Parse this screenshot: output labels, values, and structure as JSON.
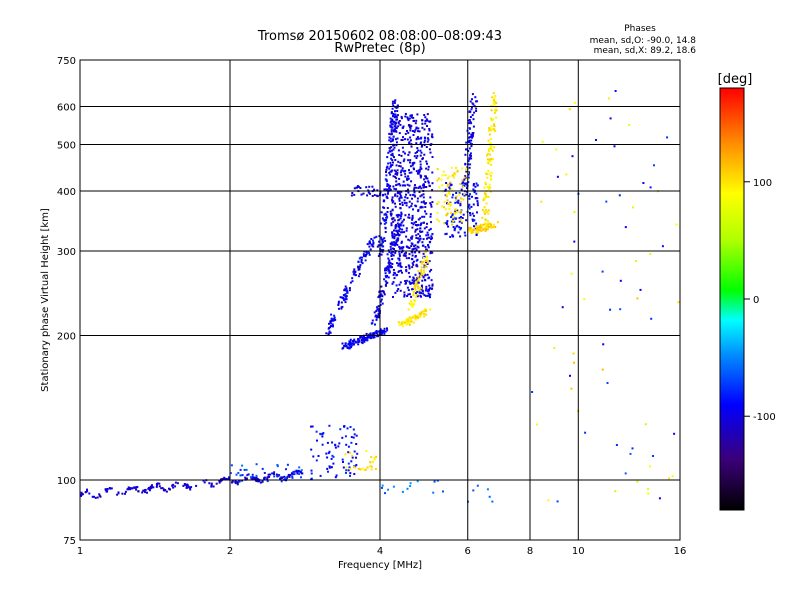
{
  "chart_data": {
    "type": "scatter",
    "title": "Tromsø 20150602 08:08:00–08:09:43",
    "subtitle": "RwPretec (8p)",
    "xlabel": "Frequency [MHz]",
    "ylabel": "Stationary phase Virtual Height [km]",
    "x_scale": "log2",
    "y_scale": "log",
    "xlim": [
      1,
      16
    ],
    "ylim": [
      75,
      750
    ],
    "x_ticks": [
      "1",
      "2",
      "4",
      "6",
      "8",
      "10",
      "16"
    ],
    "x_tick_values": [
      1,
      2,
      4,
      6,
      8,
      10,
      16
    ],
    "y_ticks": [
      "75",
      "100",
      "200",
      "300",
      "400",
      "500",
      "600",
      "750"
    ],
    "y_tick_values": [
      75,
      100,
      200,
      300,
      400,
      500,
      600,
      750
    ],
    "grid": true,
    "stats": {
      "header": "Phases",
      "line_o": "mean, sd,O: -90.0, 14.8",
      "line_x": "mean, sd,X:  89.2, 18.6"
    },
    "colorbar": {
      "label": "[deg]",
      "range": [
        -180,
        180
      ],
      "ticks": [
        "100",
        "0",
        "-100"
      ],
      "tick_values": [
        100,
        0,
        -100
      ]
    },
    "clusters": [
      {
        "x": [
          1.0,
          2.8
        ],
        "y": [
          93,
          103
        ],
        "phase": -105,
        "n": 220,
        "shape": "trend"
      },
      {
        "x": [
          3.4,
          4.1
        ],
        "y": [
          190,
          205
        ],
        "phase": -95,
        "n": 140,
        "shape": "line"
      },
      {
        "x": [
          3.1,
          3.9
        ],
        "y": [
          200,
          320
        ],
        "phase": -95,
        "n": 120,
        "shape": "line"
      },
      {
        "x": [
          3.9,
          4.4
        ],
        "y": [
          210,
          360
        ],
        "phase": -100,
        "n": 130,
        "shape": "line"
      },
      {
        "x": [
          4.0,
          4.3
        ],
        "y": [
          290,
          620
        ],
        "phase": -95,
        "n": 140,
        "shape": "line"
      },
      {
        "x": [
          4.2,
          5.1
        ],
        "y": [
          240,
          580
        ],
        "phase": -100,
        "n": 700,
        "shape": "cloud"
      },
      {
        "x": [
          5.4,
          6.3
        ],
        "y": [
          320,
          420
        ],
        "phase": -90,
        "n": 120,
        "shape": "cloud"
      },
      {
        "x": [
          5.9,
          6.2
        ],
        "y": [
          400,
          640
        ],
        "phase": -95,
        "n": 90,
        "shape": "line"
      },
      {
        "x": [
          3.5,
          4.2
        ],
        "y": [
          390,
          410
        ],
        "phase": -100,
        "n": 35,
        "shape": "cloud"
      },
      {
        "x": [
          4.4,
          5.0
        ],
        "y": [
          210,
          225
        ],
        "phase": 100,
        "n": 60,
        "shape": "line"
      },
      {
        "x": [
          4.6,
          5.0
        ],
        "y": [
          225,
          300
        ],
        "phase": 100,
        "n": 60,
        "shape": "line"
      },
      {
        "x": [
          5.2,
          6.0
        ],
        "y": [
          340,
          450
        ],
        "phase": 100,
        "n": 80,
        "shape": "cloud"
      },
      {
        "x": [
          6.0,
          6.8
        ],
        "y": [
          330,
          340
        ],
        "phase": 105,
        "n": 80,
        "shape": "line"
      },
      {
        "x": [
          6.5,
          6.8
        ],
        "y": [
          340,
          640
        ],
        "phase": 95,
        "n": 110,
        "shape": "line"
      },
      {
        "x": [
          2.9,
          3.6
        ],
        "y": [
          100,
          130
        ],
        "phase": -85,
        "n": 80,
        "shape": "cloud"
      },
      {
        "x": [
          3.4,
          4.0
        ],
        "y": [
          105,
          115
        ],
        "phase": 100,
        "n": 25,
        "shape": "cloud"
      },
      {
        "x": [
          2.0,
          2.8
        ],
        "y": [
          98,
          108
        ],
        "phase": -70,
        "n": 40,
        "shape": "cloud"
      },
      {
        "x": [
          4.0,
          7.0
        ],
        "y": [
          90,
          100
        ],
        "phase": -60,
        "n": 20,
        "shape": "cloud"
      },
      {
        "x": [
          8.0,
          16.0
        ],
        "y": [
          90,
          650
        ],
        "phase": 60,
        "n": 70,
        "shape": "sparse"
      }
    ]
  }
}
